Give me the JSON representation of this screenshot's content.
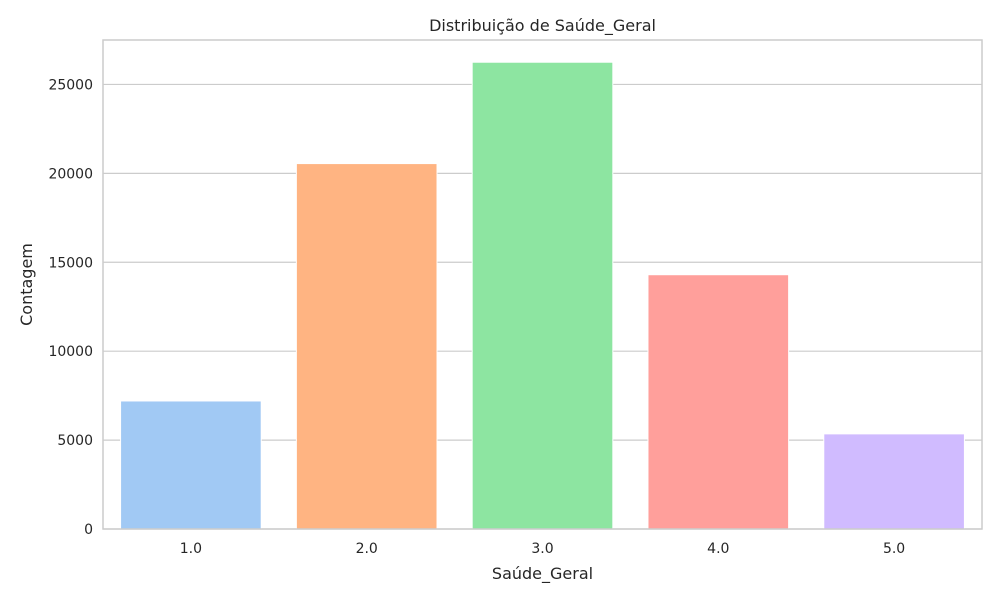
{
  "chart_data": {
    "type": "bar",
    "title": "Distribuição de Saúde_Geral",
    "xlabel": "Saúde_Geral",
    "ylabel": "Contagem",
    "categories": [
      "1.0",
      "2.0",
      "3.0",
      "4.0",
      "5.0"
    ],
    "values": [
      7200,
      20550,
      26250,
      14300,
      5350
    ],
    "ylim": [
      0,
      27500
    ],
    "yticks": [
      0,
      5000,
      10000,
      15000,
      20000,
      25000
    ],
    "grid": "y",
    "colors": [
      "#a1c9f4",
      "#ffb482",
      "#8de5a1",
      "#ff9f9b",
      "#d0bbff"
    ]
  }
}
